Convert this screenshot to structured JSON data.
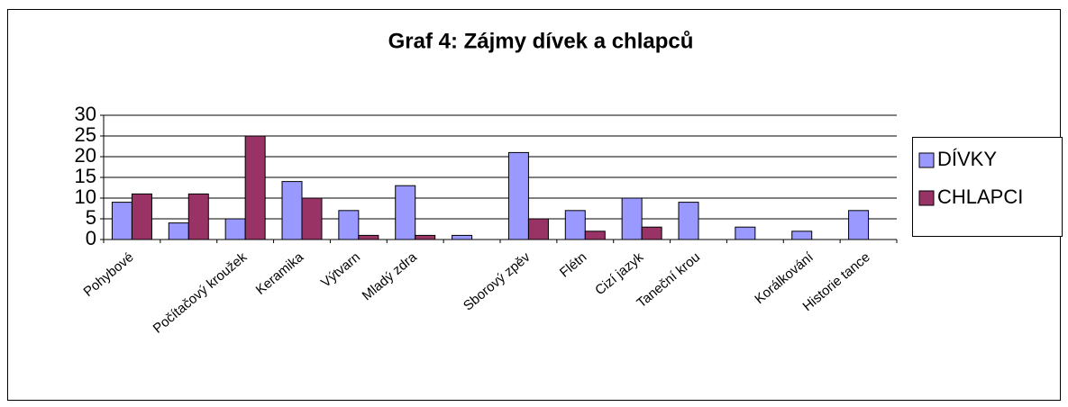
{
  "chart_data": {
    "type": "bar",
    "title": "Graf 4: Zájmy dívek a chlapců",
    "categories": [
      "Pohybové",
      null,
      "Počítačový kroužek",
      "Keramika",
      "Výtvarn",
      "Mladý zdra",
      null,
      "Sborový zpěv",
      "Flétn",
      "Cizí jazyk",
      "Taneční krou",
      null,
      "Korálkování",
      "Historie tance"
    ],
    "series": [
      {
        "name": "DÍVKY",
        "color": "#9999ff",
        "values": [
          9,
          4,
          5,
          14,
          7,
          13,
          1,
          21,
          7,
          10,
          9,
          3,
          2,
          7
        ]
      },
      {
        "name": "CHLAPCI",
        "color": "#993366",
        "values": [
          11,
          11,
          25,
          10,
          1,
          1,
          0,
          5,
          2,
          3,
          0,
          0,
          0,
          0
        ]
      }
    ],
    "ylim": [
      0,
      30
    ],
    "yticks": [
      0,
      5,
      10,
      15,
      20,
      25,
      30
    ],
    "grid": true,
    "legend": "right"
  }
}
